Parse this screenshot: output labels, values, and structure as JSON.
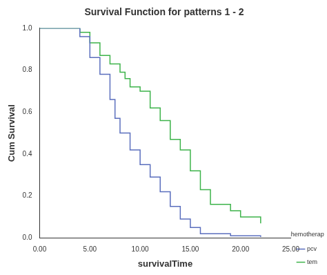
{
  "chart_data": {
    "type": "line",
    "title": "Survival Function for patterns 1 - 2",
    "x_label": "survivalTime",
    "y_label": "Cum Survival",
    "legend_title": "chemotherapy",
    "legend": "right",
    "grid": false,
    "line_style": "stepped",
    "xlim": [
      0,
      25
    ],
    "xticks": [
      {
        "value": 0,
        "label": "0.00"
      },
      {
        "value": 5,
        "label": "5.00"
      },
      {
        "value": 10,
        "label": "10.00"
      },
      {
        "value": 15,
        "label": "15.00"
      },
      {
        "value": 20,
        "label": "20.00"
      },
      {
        "value": 25,
        "label": "25.00"
      }
    ],
    "ylim": [
      0,
      1
    ],
    "yticks": [
      {
        "value": 0,
        "label": "0.0"
      },
      0.2,
      0.4,
      0.6,
      0.8,
      {
        "value": 1,
        "label": "1.0"
      }
    ],
    "series": [
      {
        "name": "pcv",
        "color": "#5a6ebd",
        "x": [
          0,
          4,
          5,
          6,
          7,
          7.5,
          8,
          9,
          10,
          11,
          12,
          13,
          14,
          15,
          16,
          19,
          22
        ],
        "values": [
          1.0,
          0.96,
          0.86,
          0.78,
          0.66,
          0.57,
          0.5,
          0.42,
          0.35,
          0.29,
          0.22,
          0.15,
          0.09,
          0.05,
          0.02,
          0.01,
          0.005
        ]
      },
      {
        "name": "tem",
        "color": "#3db34a",
        "x": [
          0,
          4,
          5,
          6,
          7,
          8,
          8.5,
          9,
          10,
          11,
          12,
          13,
          14,
          15,
          16,
          17,
          19,
          20,
          22
        ],
        "values": [
          1.0,
          0.98,
          0.93,
          0.87,
          0.83,
          0.79,
          0.76,
          0.72,
          0.7,
          0.62,
          0.56,
          0.47,
          0.42,
          0.32,
          0.23,
          0.16,
          0.13,
          0.1,
          0.07
        ]
      }
    ]
  }
}
